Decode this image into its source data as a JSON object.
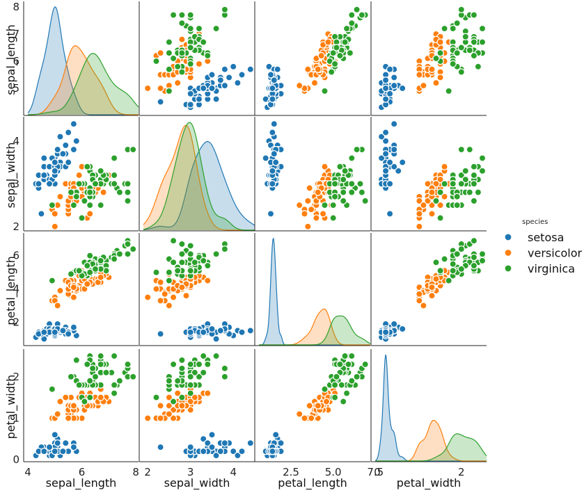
{
  "chart_data": {
    "type": "scatter",
    "kind": "pairplot",
    "variables": [
      "sepal_length",
      "sepal_width",
      "petal_length",
      "petal_width"
    ],
    "axis_labels": {
      "x": [
        "sepal_length",
        "sepal_width",
        "petal_length",
        "petal_width"
      ],
      "y": [
        "sepal_length",
        "sepal_width",
        "petal_length",
        "petal_width"
      ]
    },
    "ranges": {
      "sepal_length": [
        4.0,
        8.1
      ],
      "sepal_width": [
        1.9,
        4.5
      ],
      "petal_length": [
        0.6,
        7.2
      ],
      "petal_width": [
        -0.05,
        2.6
      ]
    },
    "x_ticks": {
      "sepal_length": [
        "4",
        "6",
        "8"
      ],
      "sepal_width": [
        "2",
        "3",
        "4"
      ],
      "petal_length": [
        "2.5",
        "5.0",
        "7.5"
      ],
      "petal_width": [
        "0",
        "2"
      ]
    },
    "y_ticks": {
      "sepal_length": [
        "5",
        "6",
        "7",
        "8"
      ],
      "sepal_width": [
        "2",
        "3",
        "4"
      ],
      "petal_length": [
        "2",
        "4",
        "6"
      ],
      "petal_width": [
        "0",
        "1",
        "2"
      ]
    },
    "diagonal": "kde",
    "off_diagonal": "scatter",
    "grid": false,
    "colors": {
      "setosa": "#1f77b4",
      "versicolor": "#ff7f0e",
      "virginica": "#2ca02c"
    },
    "legend": {
      "title": "species",
      "placement": "right",
      "entries": [
        "setosa",
        "versicolor",
        "virginica"
      ]
    },
    "series": [
      {
        "name": "setosa",
        "color": "#1f77b4",
        "points": [
          [
            5.1,
            3.5,
            1.4,
            0.2
          ],
          [
            4.9,
            3.0,
            1.4,
            0.2
          ],
          [
            4.7,
            3.2,
            1.3,
            0.2
          ],
          [
            4.6,
            3.1,
            1.5,
            0.2
          ],
          [
            5.0,
            3.6,
            1.4,
            0.2
          ],
          [
            5.4,
            3.9,
            1.7,
            0.4
          ],
          [
            4.6,
            3.4,
            1.4,
            0.3
          ],
          [
            5.0,
            3.4,
            1.5,
            0.2
          ],
          [
            4.4,
            2.9,
            1.4,
            0.2
          ],
          [
            4.9,
            3.1,
            1.5,
            0.1
          ],
          [
            5.4,
            3.7,
            1.5,
            0.2
          ],
          [
            4.8,
            3.4,
            1.6,
            0.2
          ],
          [
            4.8,
            3.0,
            1.4,
            0.1
          ],
          [
            4.3,
            3.0,
            1.1,
            0.1
          ],
          [
            5.8,
            4.0,
            1.2,
            0.2
          ],
          [
            5.7,
            4.4,
            1.5,
            0.4
          ],
          [
            5.4,
            3.9,
            1.3,
            0.4
          ],
          [
            5.1,
            3.5,
            1.4,
            0.3
          ],
          [
            5.7,
            3.8,
            1.7,
            0.3
          ],
          [
            5.1,
            3.8,
            1.5,
            0.3
          ],
          [
            5.4,
            3.4,
            1.7,
            0.2
          ],
          [
            5.1,
            3.7,
            1.5,
            0.4
          ],
          [
            4.6,
            3.6,
            1.0,
            0.2
          ],
          [
            5.1,
            3.3,
            1.7,
            0.5
          ],
          [
            4.8,
            3.4,
            1.9,
            0.2
          ],
          [
            5.0,
            3.0,
            1.6,
            0.2
          ],
          [
            5.0,
            3.4,
            1.6,
            0.4
          ],
          [
            5.2,
            3.5,
            1.5,
            0.2
          ],
          [
            5.2,
            3.4,
            1.4,
            0.2
          ],
          [
            4.7,
            3.2,
            1.6,
            0.2
          ],
          [
            4.8,
            3.1,
            1.6,
            0.2
          ],
          [
            5.4,
            3.4,
            1.5,
            0.4
          ],
          [
            5.2,
            4.1,
            1.5,
            0.1
          ],
          [
            5.5,
            4.2,
            1.4,
            0.2
          ],
          [
            4.9,
            3.1,
            1.5,
            0.2
          ],
          [
            5.0,
            3.2,
            1.2,
            0.2
          ],
          [
            5.5,
            3.5,
            1.3,
            0.2
          ],
          [
            4.9,
            3.6,
            1.4,
            0.1
          ],
          [
            4.4,
            3.0,
            1.3,
            0.2
          ],
          [
            5.1,
            3.4,
            1.5,
            0.2
          ],
          [
            5.0,
            3.5,
            1.3,
            0.3
          ],
          [
            4.5,
            2.3,
            1.3,
            0.3
          ],
          [
            4.4,
            3.2,
            1.3,
            0.2
          ],
          [
            5.0,
            3.5,
            1.6,
            0.6
          ],
          [
            5.1,
            3.8,
            1.9,
            0.4
          ],
          [
            4.8,
            3.0,
            1.4,
            0.3
          ],
          [
            5.1,
            3.8,
            1.6,
            0.2
          ],
          [
            4.6,
            3.2,
            1.4,
            0.2
          ],
          [
            5.3,
            3.7,
            1.5,
            0.2
          ],
          [
            5.0,
            3.3,
            1.4,
            0.2
          ]
        ]
      },
      {
        "name": "versicolor",
        "color": "#ff7f0e",
        "points": [
          [
            7.0,
            3.2,
            4.7,
            1.4
          ],
          [
            6.4,
            3.2,
            4.5,
            1.5
          ],
          [
            6.9,
            3.1,
            4.9,
            1.5
          ],
          [
            5.5,
            2.3,
            4.0,
            1.3
          ],
          [
            6.5,
            2.8,
            4.6,
            1.5
          ],
          [
            5.7,
            2.8,
            4.5,
            1.3
          ],
          [
            6.3,
            3.3,
            4.7,
            1.6
          ],
          [
            4.9,
            2.4,
            3.3,
            1.0
          ],
          [
            6.6,
            2.9,
            4.6,
            1.3
          ],
          [
            5.2,
            2.7,
            3.9,
            1.4
          ],
          [
            5.0,
            2.0,
            3.5,
            1.0
          ],
          [
            5.9,
            3.0,
            4.2,
            1.5
          ],
          [
            6.0,
            2.2,
            4.0,
            1.0
          ],
          [
            6.1,
            2.9,
            4.7,
            1.4
          ],
          [
            5.6,
            2.9,
            3.6,
            1.3
          ],
          [
            6.7,
            3.1,
            4.4,
            1.4
          ],
          [
            5.6,
            3.0,
            4.5,
            1.5
          ],
          [
            5.8,
            2.7,
            4.1,
            1.0
          ],
          [
            6.2,
            2.2,
            4.5,
            1.5
          ],
          [
            5.6,
            2.5,
            3.9,
            1.1
          ],
          [
            5.9,
            3.2,
            4.8,
            1.8
          ],
          [
            6.1,
            2.8,
            4.0,
            1.3
          ],
          [
            6.3,
            2.5,
            4.9,
            1.5
          ],
          [
            6.1,
            2.8,
            4.7,
            1.2
          ],
          [
            6.4,
            2.9,
            4.3,
            1.3
          ],
          [
            6.6,
            3.0,
            4.4,
            1.4
          ],
          [
            6.8,
            2.8,
            4.8,
            1.4
          ],
          [
            6.7,
            3.0,
            5.0,
            1.7
          ],
          [
            6.0,
            2.9,
            4.5,
            1.5
          ],
          [
            5.7,
            2.6,
            3.5,
            1.0
          ],
          [
            5.5,
            2.4,
            3.8,
            1.1
          ],
          [
            5.5,
            2.4,
            3.7,
            1.0
          ],
          [
            5.8,
            2.7,
            3.9,
            1.2
          ],
          [
            6.0,
            2.7,
            5.1,
            1.6
          ],
          [
            5.4,
            3.0,
            4.5,
            1.5
          ],
          [
            6.0,
            3.4,
            4.5,
            1.6
          ],
          [
            6.7,
            3.1,
            4.7,
            1.5
          ],
          [
            6.3,
            2.3,
            4.4,
            1.3
          ],
          [
            5.6,
            3.0,
            4.1,
            1.3
          ],
          [
            5.5,
            2.5,
            4.0,
            1.3
          ],
          [
            5.5,
            2.6,
            4.4,
            1.2
          ],
          [
            6.1,
            3.0,
            4.6,
            1.4
          ],
          [
            5.8,
            2.6,
            4.0,
            1.2
          ],
          [
            5.0,
            2.3,
            3.3,
            1.0
          ],
          [
            5.6,
            2.7,
            4.2,
            1.3
          ],
          [
            5.7,
            3.0,
            4.2,
            1.2
          ],
          [
            5.7,
            2.9,
            4.2,
            1.3
          ],
          [
            6.2,
            2.9,
            4.3,
            1.3
          ],
          [
            5.1,
            2.5,
            3.0,
            1.1
          ],
          [
            5.7,
            2.8,
            4.1,
            1.3
          ]
        ]
      },
      {
        "name": "virginica",
        "color": "#2ca02c",
        "points": [
          [
            6.3,
            3.3,
            6.0,
            2.5
          ],
          [
            5.8,
            2.7,
            5.1,
            1.9
          ],
          [
            7.1,
            3.0,
            5.9,
            2.1
          ],
          [
            6.3,
            2.9,
            5.6,
            1.8
          ],
          [
            6.5,
            3.0,
            5.8,
            2.2
          ],
          [
            7.6,
            3.0,
            6.6,
            2.1
          ],
          [
            4.9,
            2.5,
            4.5,
            1.7
          ],
          [
            7.3,
            2.9,
            6.3,
            1.8
          ],
          [
            6.7,
            2.5,
            5.8,
            1.8
          ],
          [
            7.2,
            3.6,
            6.1,
            2.5
          ],
          [
            6.5,
            3.2,
            5.1,
            2.0
          ],
          [
            6.4,
            2.7,
            5.3,
            1.9
          ],
          [
            6.8,
            3.0,
            5.5,
            2.1
          ],
          [
            5.7,
            2.5,
            5.0,
            2.0
          ],
          [
            5.8,
            2.8,
            5.1,
            2.4
          ],
          [
            6.4,
            3.2,
            5.3,
            2.3
          ],
          [
            6.5,
            3.0,
            5.5,
            1.8
          ],
          [
            7.7,
            3.8,
            6.7,
            2.2
          ],
          [
            7.7,
            2.6,
            6.9,
            2.3
          ],
          [
            6.0,
            2.2,
            5.0,
            1.5
          ],
          [
            6.9,
            3.2,
            5.7,
            2.3
          ],
          [
            5.6,
            2.8,
            4.9,
            2.0
          ],
          [
            7.7,
            2.8,
            6.7,
            2.0
          ],
          [
            6.3,
            2.7,
            4.9,
            1.8
          ],
          [
            6.7,
            3.3,
            5.7,
            2.1
          ],
          [
            7.2,
            3.2,
            6.0,
            1.8
          ],
          [
            6.2,
            2.8,
            4.8,
            1.8
          ],
          [
            6.1,
            3.0,
            4.9,
            1.8
          ],
          [
            6.4,
            2.8,
            5.6,
            2.1
          ],
          [
            7.2,
            3.0,
            5.8,
            1.6
          ],
          [
            7.4,
            2.8,
            6.1,
            1.9
          ],
          [
            7.9,
            3.8,
            6.4,
            2.0
          ],
          [
            6.4,
            2.8,
            5.6,
            2.2
          ],
          [
            6.3,
            2.8,
            5.1,
            1.5
          ],
          [
            6.1,
            2.6,
            5.6,
            1.4
          ],
          [
            7.7,
            3.0,
            6.1,
            2.3
          ],
          [
            6.3,
            3.4,
            5.6,
            2.4
          ],
          [
            6.4,
            3.1,
            5.5,
            1.8
          ],
          [
            6.0,
            3.0,
            4.8,
            1.8
          ],
          [
            6.9,
            3.1,
            5.4,
            2.1
          ],
          [
            6.7,
            3.1,
            5.6,
            2.4
          ],
          [
            6.9,
            3.1,
            5.1,
            2.3
          ],
          [
            5.8,
            2.7,
            5.1,
            1.9
          ],
          [
            6.8,
            3.2,
            5.9,
            2.3
          ],
          [
            6.7,
            3.3,
            5.7,
            2.5
          ],
          [
            6.7,
            3.0,
            5.2,
            2.3
          ],
          [
            6.3,
            2.5,
            5.0,
            1.9
          ],
          [
            6.5,
            3.0,
            5.2,
            2.0
          ],
          [
            6.2,
            3.4,
            5.4,
            2.3
          ],
          [
            5.9,
            3.0,
            5.1,
            1.8
          ]
        ]
      }
    ]
  }
}
